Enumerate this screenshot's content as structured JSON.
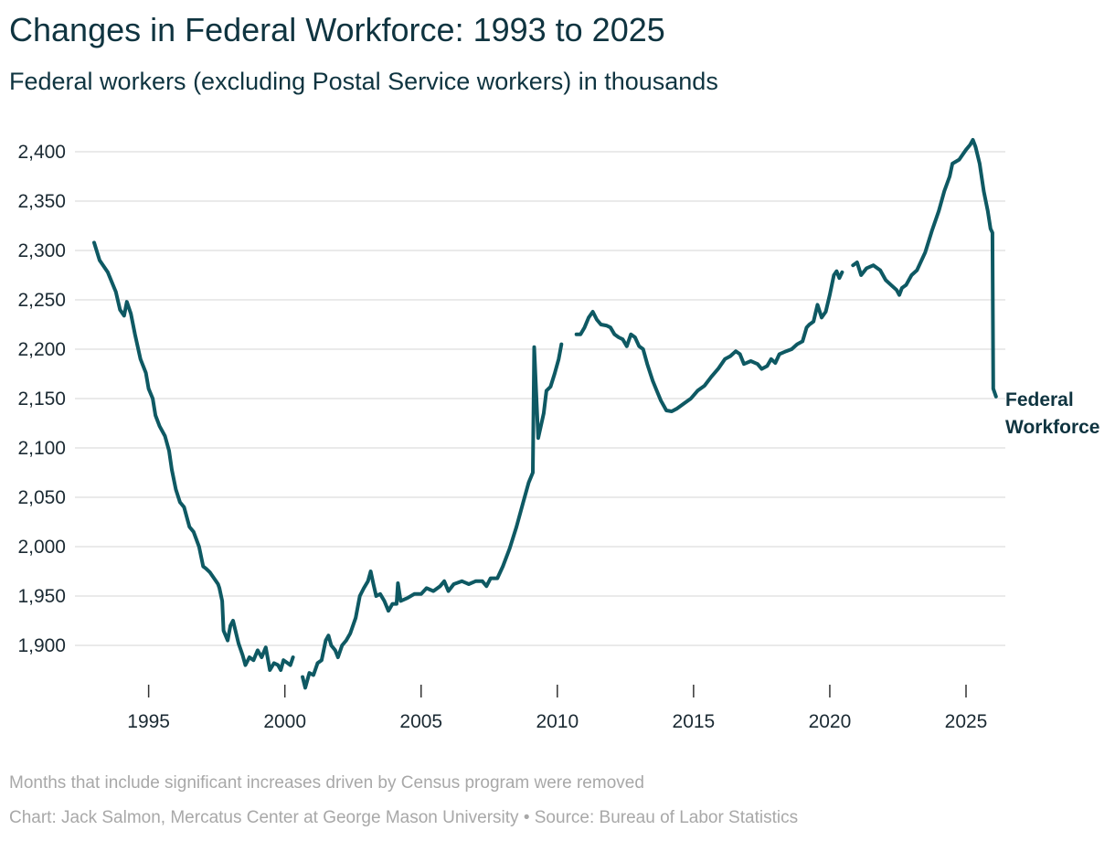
{
  "title": "Changes in Federal Workforce: 1993 to 2025",
  "subtitle": "Federal workers (excluding Postal Service workers) in thousands",
  "footnote": "Months that include significant increases driven by Census program were removed",
  "credit": "Chart: Jack Salmon, Mercatus Center at George Mason University • Source: Bureau of Labor Statistics",
  "colors": {
    "line": "#0e5963",
    "grid": "#e3e3e3",
    "text": "#0f3440",
    "muted": "#a8a8a8"
  },
  "chart_data": {
    "type": "line",
    "title": "Changes in Federal Workforce: 1993 to 2025",
    "subtitle": "Federal workers (excluding Postal Service workers) in thousands",
    "xlabel": "",
    "ylabel": "",
    "xlim": [
      1992.6,
      2026.1
    ],
    "ylim": [
      1855,
      2420
    ],
    "grid": true,
    "x_ticks": [
      1995,
      2000,
      2005,
      2010,
      2015,
      2020,
      2025
    ],
    "x_tick_labels": [
      "1995",
      "2000",
      "2005",
      "2010",
      "2015",
      "2020",
      "2025"
    ],
    "y_ticks": [
      1900,
      1950,
      2000,
      2050,
      2100,
      2150,
      2200,
      2250,
      2300,
      2350,
      2400
    ],
    "y_tick_labels": [
      "1,900",
      "1,950",
      "2,000",
      "2,050",
      "2,100",
      "2,150",
      "2,200",
      "2,250",
      "2,300",
      "2,350",
      "2,400"
    ],
    "series": [
      {
        "name": "Federal Workforce",
        "label_lines": [
          "Federal",
          "Workforce"
        ],
        "segments": [
          [
            [
              1993.0,
              2308
            ],
            [
              1993.2,
              2290
            ],
            [
              1993.5,
              2278
            ],
            [
              1993.8,
              2258
            ],
            [
              1993.95,
              2240
            ],
            [
              1994.1,
              2234
            ],
            [
              1994.2,
              2248
            ],
            [
              1994.35,
              2236
            ],
            [
              1994.5,
              2215
            ],
            [
              1994.7,
              2190
            ],
            [
              1994.9,
              2176
            ],
            [
              1995.0,
              2160
            ],
            [
              1995.15,
              2150
            ],
            [
              1995.25,
              2133
            ],
            [
              1995.4,
              2122
            ],
            [
              1995.6,
              2112
            ],
            [
              1995.75,
              2097
            ],
            [
              1995.85,
              2078
            ],
            [
              1996.0,
              2058
            ],
            [
              1996.15,
              2045
            ],
            [
              1996.3,
              2040
            ],
            [
              1996.5,
              2020
            ],
            [
              1996.65,
              2015
            ],
            [
              1996.85,
              2000
            ],
            [
              1997.0,
              1980
            ],
            [
              1997.1,
              1978
            ],
            [
              1997.25,
              1974
            ],
            [
              1997.4,
              1968
            ],
            [
              1997.55,
              1962
            ],
            [
              1997.6,
              1958
            ],
            [
              1997.7,
              1945
            ],
            [
              1997.75,
              1915
            ],
            [
              1997.9,
              1905
            ],
            [
              1998.0,
              1920
            ],
            [
              1998.1,
              1925
            ],
            [
              1998.3,
              1902
            ],
            [
              1998.45,
              1890
            ],
            [
              1998.55,
              1880
            ],
            [
              1998.7,
              1888
            ],
            [
              1998.85,
              1885
            ],
            [
              1999.0,
              1895
            ],
            [
              1999.15,
              1888
            ],
            [
              1999.3,
              1898
            ],
            [
              1999.45,
              1875
            ],
            [
              1999.6,
              1882
            ],
            [
              1999.75,
              1880
            ],
            [
              1999.85,
              1875
            ],
            [
              1999.95,
              1885
            ],
            [
              2000.1,
              1882
            ],
            [
              2000.2,
              1880
            ],
            [
              2000.3,
              1888
            ]
          ],
          [
            [
              2000.65,
              1868
            ],
            [
              2000.75,
              1857
            ],
            [
              2000.9,
              1872
            ],
            [
              2001.05,
              1870
            ],
            [
              2001.2,
              1882
            ],
            [
              2001.35,
              1885
            ],
            [
              2001.5,
              1905
            ],
            [
              2001.6,
              1910
            ],
            [
              2001.7,
              1900
            ],
            [
              2001.85,
              1895
            ],
            [
              2001.95,
              1888
            ],
            [
              2002.1,
              1900
            ],
            [
              2002.25,
              1905
            ],
            [
              2002.4,
              1912
            ],
            [
              2002.6,
              1928
            ],
            [
              2002.75,
              1950
            ],
            [
              2002.9,
              1958
            ],
            [
              2003.05,
              1965
            ],
            [
              2003.15,
              1975
            ],
            [
              2003.25,
              1962
            ],
            [
              2003.35,
              1950
            ],
            [
              2003.5,
              1952
            ],
            [
              2003.65,
              1945
            ],
            [
              2003.8,
              1935
            ],
            [
              2003.95,
              1942
            ],
            [
              2004.1,
              1942
            ],
            [
              2004.15,
              1963
            ],
            [
              2004.25,
              1945
            ],
            [
              2004.5,
              1948
            ],
            [
              2004.75,
              1952
            ],
            [
              2005.0,
              1952
            ],
            [
              2005.2,
              1958
            ],
            [
              2005.45,
              1955
            ],
            [
              2005.7,
              1960
            ],
            [
              2005.85,
              1965
            ],
            [
              2006.0,
              1955
            ],
            [
              2006.2,
              1962
            ],
            [
              2006.5,
              1965
            ],
            [
              2006.75,
              1962
            ],
            [
              2007.0,
              1965
            ],
            [
              2007.25,
              1965
            ],
            [
              2007.4,
              1960
            ],
            [
              2007.55,
              1968
            ],
            [
              2007.8,
              1968
            ],
            [
              2008.0,
              1980
            ],
            [
              2008.25,
              1998
            ],
            [
              2008.5,
              2020
            ],
            [
              2008.75,
              2045
            ],
            [
              2008.95,
              2065
            ],
            [
              2009.1,
              2075
            ],
            [
              2009.15,
              2202
            ],
            [
              2009.3,
              2110
            ],
            [
              2009.5,
              2135
            ],
            [
              2009.6,
              2158
            ],
            [
              2009.75,
              2162
            ],
            [
              2009.9,
              2175
            ],
            [
              2010.05,
              2190
            ],
            [
              2010.15,
              2205
            ]
          ],
          [
            [
              2010.7,
              2215
            ],
            [
              2010.85,
              2215
            ],
            [
              2011.0,
              2222
            ],
            [
              2011.15,
              2232
            ],
            [
              2011.3,
              2238
            ],
            [
              2011.45,
              2230
            ],
            [
              2011.6,
              2225
            ],
            [
              2011.8,
              2224
            ],
            [
              2011.95,
              2222
            ],
            [
              2012.1,
              2215
            ],
            [
              2012.25,
              2212
            ],
            [
              2012.4,
              2210
            ],
            [
              2012.55,
              2203
            ],
            [
              2012.7,
              2215
            ],
            [
              2012.85,
              2212
            ],
            [
              2013.0,
              2203
            ],
            [
              2013.15,
              2200
            ],
            [
              2013.3,
              2185
            ],
            [
              2013.5,
              2168
            ],
            [
              2013.65,
              2158
            ],
            [
              2013.8,
              2148
            ],
            [
              2014.0,
              2138
            ],
            [
              2014.2,
              2137
            ],
            [
              2014.4,
              2140
            ],
            [
              2014.65,
              2145
            ],
            [
              2014.9,
              2150
            ],
            [
              2015.15,
              2158
            ],
            [
              2015.4,
              2163
            ],
            [
              2015.65,
              2172
            ],
            [
              2015.9,
              2180
            ],
            [
              2016.15,
              2190
            ],
            [
              2016.35,
              2193
            ],
            [
              2016.55,
              2198
            ],
            [
              2016.7,
              2195
            ],
            [
              2016.85,
              2185
            ],
            [
              2017.1,
              2188
            ],
            [
              2017.35,
              2185
            ],
            [
              2017.5,
              2180
            ],
            [
              2017.7,
              2183
            ],
            [
              2017.85,
              2190
            ],
            [
              2018.0,
              2186
            ],
            [
              2018.15,
              2195
            ],
            [
              2018.4,
              2198
            ],
            [
              2018.6,
              2200
            ],
            [
              2018.8,
              2205
            ],
            [
              2019.0,
              2208
            ],
            [
              2019.15,
              2222
            ],
            [
              2019.25,
              2225
            ],
            [
              2019.4,
              2228
            ],
            [
              2019.55,
              2245
            ],
            [
              2019.7,
              2232
            ],
            [
              2019.85,
              2238
            ],
            [
              2020.0,
              2255
            ],
            [
              2020.15,
              2275
            ],
            [
              2020.25,
              2279
            ],
            [
              2020.35,
              2272
            ],
            [
              2020.45,
              2278
            ]
          ],
          [
            [
              2020.85,
              2285
            ],
            [
              2021.0,
              2288
            ],
            [
              2021.15,
              2275
            ],
            [
              2021.35,
              2282
            ],
            [
              2021.6,
              2285
            ],
            [
              2021.85,
              2280
            ],
            [
              2022.05,
              2270
            ],
            [
              2022.25,
              2265
            ],
            [
              2022.45,
              2260
            ],
            [
              2022.55,
              2255
            ],
            [
              2022.65,
              2262
            ],
            [
              2022.8,
              2265
            ],
            [
              2023.0,
              2275
            ],
            [
              2023.2,
              2280
            ],
            [
              2023.5,
              2298
            ],
            [
              2023.75,
              2320
            ],
            [
              2024.0,
              2340
            ],
            [
              2024.2,
              2360
            ],
            [
              2024.4,
              2375
            ],
            [
              2024.5,
              2388
            ],
            [
              2024.75,
              2392
            ],
            [
              2025.0,
              2402
            ],
            [
              2025.15,
              2407
            ],
            [
              2025.25,
              2412
            ],
            [
              2025.35,
              2405
            ],
            [
              2025.5,
              2388
            ],
            [
              2025.65,
              2360
            ],
            [
              2025.8,
              2340
            ],
            [
              2025.9,
              2322
            ],
            [
              2025.97,
              2318
            ],
            [
              2026.0,
              2160
            ],
            [
              2026.1,
              2152
            ]
          ]
        ]
      }
    ]
  }
}
